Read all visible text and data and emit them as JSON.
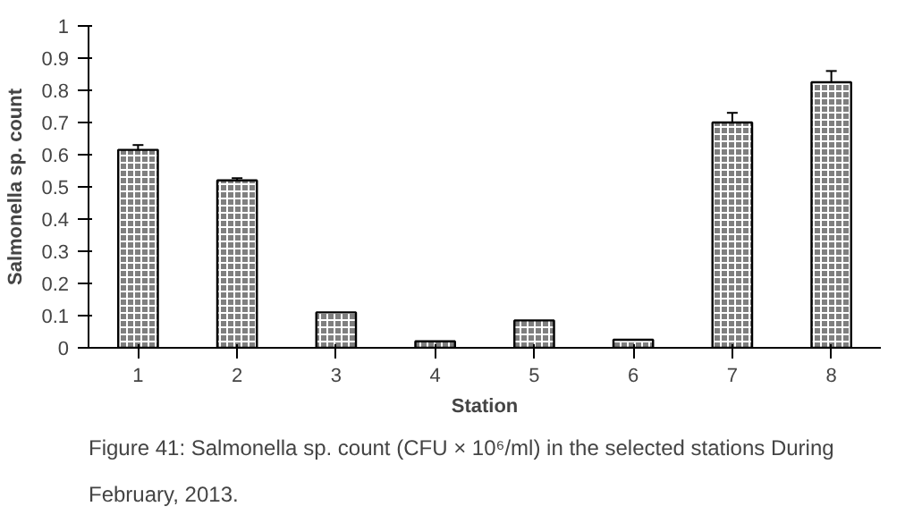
{
  "chart_data": {
    "type": "bar",
    "xlabel": "Station",
    "ylabel": "Salmonella sp. count",
    "categories": [
      "1",
      "2",
      "3",
      "4",
      "5",
      "6",
      "7",
      "8"
    ],
    "values": [
      0.615,
      0.52,
      0.11,
      0.02,
      0.085,
      0.025,
      0.7,
      0.825
    ],
    "errors": [
      0.015,
      0.007,
      null,
      null,
      null,
      null,
      0.03,
      0.035
    ],
    "color": "#7f7f7f",
    "ylim": [
      0,
      1
    ],
    "yticks": [
      0,
      0.1,
      0.2,
      0.3,
      0.4,
      0.5,
      0.6,
      0.7,
      0.8,
      0.9,
      1
    ],
    "grid": false,
    "annotations": [
      "Figure 41: Salmonella sp. count (CFU × 10⁶/ml) in the selected stations During February, 2013."
    ]
  }
}
